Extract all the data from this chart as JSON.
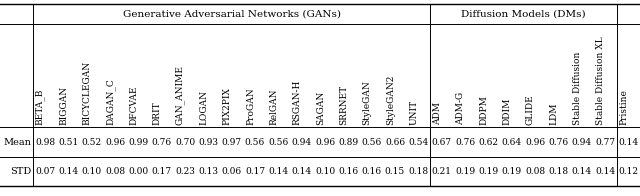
{
  "group1_label": "Generative Adversarial Networks (GANs)",
  "group2_label": "Diffusion Models (DMs)",
  "gan_cols": [
    "BETA_B",
    "BIGGAN",
    "BICYCLEGAN",
    "DAGAN_C",
    "DFCVAE",
    "DRIT",
    "GAN_ANIME",
    "LOGAN",
    "PIX2PIX",
    "ProGAN",
    "RelGAN",
    "RSGAN-H",
    "SAGAN",
    "SRRNET",
    "StyleGAN",
    "StyleGAN2",
    "UNIT"
  ],
  "dm_cols": [
    "ADM",
    "ADM-G",
    "DDPM",
    "DDIM",
    "GLIDE",
    "LDM",
    "Stable Diffusion",
    "Stable Diffusion XL"
  ],
  "pristine_col": [
    "Pristine"
  ],
  "mean_values": [
    "0.98",
    "0.51",
    "0.52",
    "0.96",
    "0.99",
    "0.76",
    "0.70",
    "0.93",
    "0.97",
    "0.56",
    "0.56",
    "0.94",
    "0.96",
    "0.89",
    "0.56",
    "0.66",
    "0.54",
    "0.67",
    "0.76",
    "0.62",
    "0.64",
    "0.96",
    "0.76",
    "0.94",
    "0.77",
    "0.14"
  ],
  "std_values": [
    "0.07",
    "0.14",
    "0.10",
    "0.08",
    "0.00",
    "0.17",
    "0.23",
    "0.13",
    "0.06",
    "0.17",
    "0.14",
    "0.14",
    "0.10",
    "0.16",
    "0.16",
    "0.15",
    "0.18",
    "0.21",
    "0.19",
    "0.19",
    "0.19",
    "0.08",
    "0.18",
    "0.14",
    "0.14",
    "0.12"
  ],
  "background_color": "#ffffff",
  "data_fontsize": 6.5,
  "header_fontsize": 6.5,
  "group_fontsize": 7.5,
  "row_label_fontsize": 7.0,
  "caption_fontsize": 8.0
}
